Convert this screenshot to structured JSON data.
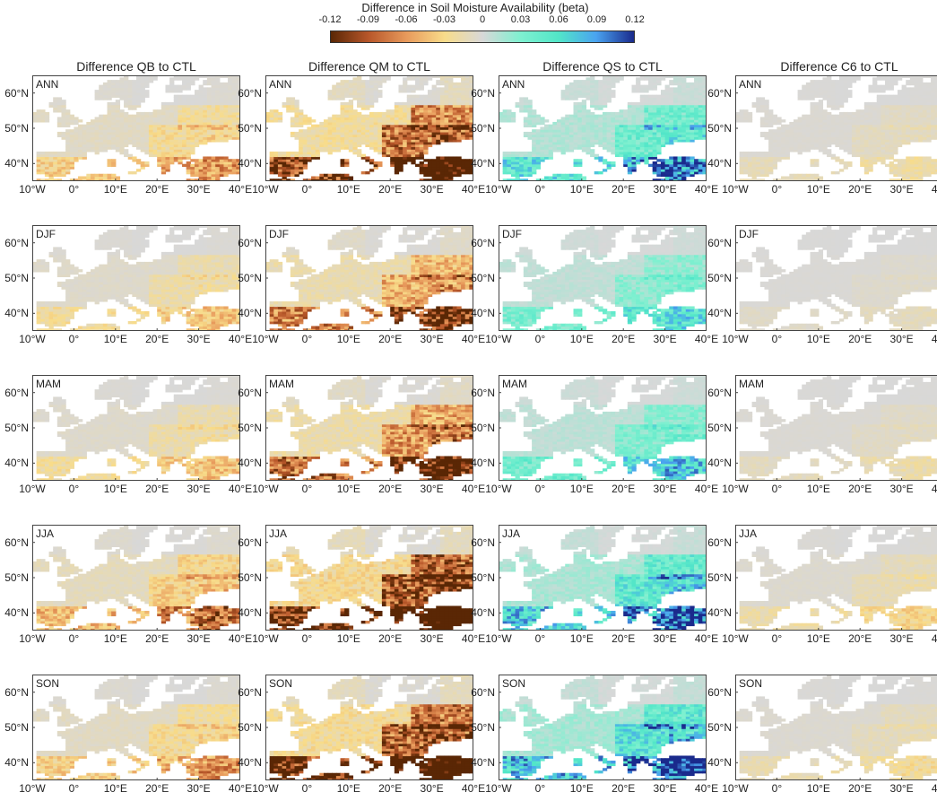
{
  "colorbar": {
    "title": "Difference in Soil Moisture Availability (beta)",
    "ticks": [
      "-0.12",
      "-0.09",
      "-0.06",
      "-0.03",
      "0",
      "0.03",
      "0.06",
      "0.09",
      "0.12"
    ],
    "colors": [
      "#5a2705",
      "#b8572a",
      "#e89a5c",
      "#f8dc8a",
      "#d8d8d8",
      "#7ff0d0",
      "#52e6c8",
      "#4aa3f0",
      "#1a2a8c"
    ]
  },
  "columns": [
    "Difference QB to CTL",
    "Difference QM to CTL",
    "Difference QS to CTL",
    "Difference C6 to CTL"
  ],
  "seasons": [
    "ANN",
    "DJF",
    "MAM",
    "JJA",
    "SON"
  ],
  "y_ticks": [
    "60°N",
    "50°N",
    "40°N"
  ],
  "x_ticks": [
    "10°W",
    "0°",
    "10°E",
    "20°E",
    "30°E",
    "40°E"
  ],
  "map_extent": {
    "lon": [
      -10,
      40
    ],
    "lat": [
      35,
      65
    ]
  },
  "colors": {
    "land": "#d8d8d8",
    "axis": "#444444",
    "ocean": "#ffffff"
  },
  "chart_data": {
    "type": "heatmap",
    "variable": "Difference in Soil Moisture Availability (beta)",
    "range": [
      -0.12,
      0.12
    ],
    "panels_mean_difference": {
      "QB": {
        "ANN": -0.03,
        "DJF": -0.02,
        "MAM": -0.02,
        "JJA": -0.04,
        "SON": -0.03
      },
      "QM": {
        "ANN": -0.09,
        "DJF": -0.06,
        "MAM": -0.07,
        "JJA": -0.11,
        "SON": -0.1
      },
      "QS": {
        "ANN": 0.05,
        "DJF": 0.03,
        "MAM": 0.035,
        "JJA": 0.06,
        "SON": 0.065
      },
      "C6": {
        "ANN": -0.01,
        "DJF": -0.005,
        "MAM": -0.008,
        "JJA": -0.015,
        "SON": -0.012
      }
    }
  }
}
